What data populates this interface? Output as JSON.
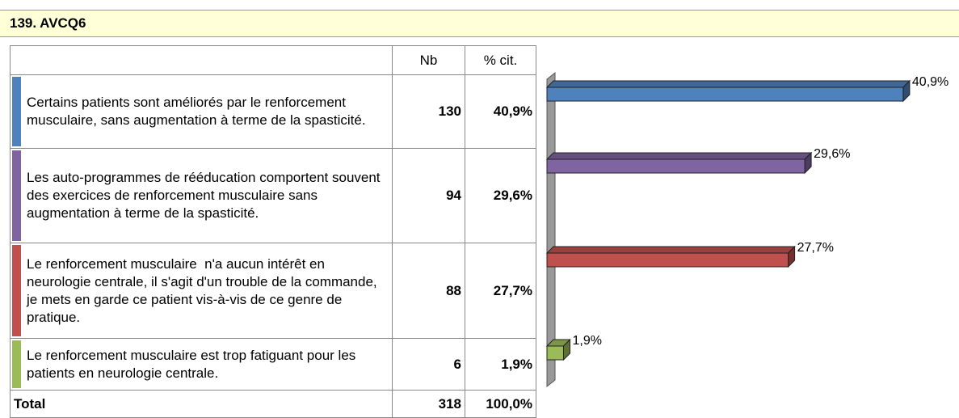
{
  "header": {
    "title": "139. AVCQ6"
  },
  "table": {
    "columns": [
      "Nb",
      "% cit."
    ],
    "rows": [
      {
        "label": "Certains patients sont améliorés par le renforcement musculaire, sans augmentation à terme de la spasticité.",
        "nb": 130,
        "pct": "40,9%"
      },
      {
        "label": "Les auto-programmes de rééducation comportent souvent des exercices de renforcement musculaire sans augmentation à terme de la spasticité.",
        "nb": 94,
        "pct": "29,6%"
      },
      {
        "label": "Le renforcement musculaire  n'a aucun intérêt en neurologie centrale, il s'agit d'un trouble de la commande,  je mets en garde ce patient vis-à-vis de ce genre de pratique.",
        "nb": 88,
        "pct": "27,7%"
      },
      {
        "label": "Le renforcement musculaire est trop fatiguant pour les patients en neurologie centrale.",
        "nb": 6,
        "pct": "1,9%"
      }
    ],
    "total": {
      "label": "Total",
      "nb": 318,
      "pct": "100,0%"
    }
  },
  "chart_data": {
    "type": "bar",
    "orientation": "horizontal",
    "values": [
      40.9,
      29.6,
      27.7,
      1.9
    ],
    "value_labels": [
      "40,9%",
      "29,6%",
      "27,7%",
      "1,9%"
    ],
    "colors": [
      "#4f81bd",
      "#8064a2",
      "#c0504d",
      "#9bbb59"
    ]
  }
}
